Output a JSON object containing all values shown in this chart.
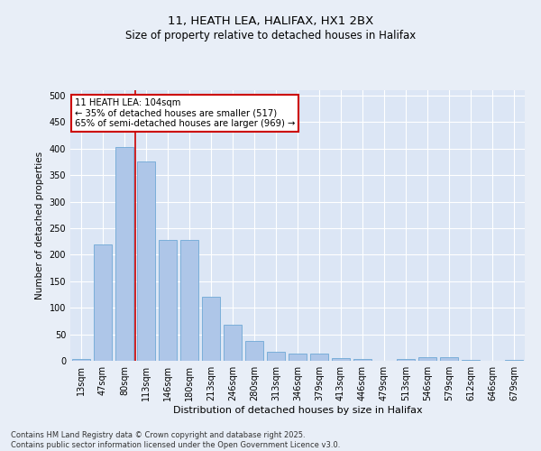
{
  "title1": "11, HEATH LEA, HALIFAX, HX1 2BX",
  "title2": "Size of property relative to detached houses in Halifax",
  "xlabel": "Distribution of detached houses by size in Halifax",
  "ylabel": "Number of detached properties",
  "categories": [
    "13sqm",
    "47sqm",
    "80sqm",
    "113sqm",
    "146sqm",
    "180sqm",
    "213sqm",
    "246sqm",
    "280sqm",
    "313sqm",
    "346sqm",
    "379sqm",
    "413sqm",
    "446sqm",
    "479sqm",
    "513sqm",
    "546sqm",
    "579sqm",
    "612sqm",
    "646sqm",
    "679sqm"
  ],
  "values": [
    3,
    220,
    403,
    375,
    228,
    228,
    120,
    68,
    38,
    17,
    13,
    13,
    5,
    3,
    0,
    3,
    7,
    7,
    1,
    0,
    1
  ],
  "bar_color": "#aec6e8",
  "bar_edge_color": "#6fa8d6",
  "vline_color": "#cc0000",
  "annotation_text": "11 HEATH LEA: 104sqm\n← 35% of detached houses are smaller (517)\n65% of semi-detached houses are larger (969) →",
  "annotation_box_color": "#ffffff",
  "annotation_box_edge": "#cc0000",
  "bg_color": "#e8eef7",
  "plot_bg_color": "#dce6f5",
  "grid_color": "#ffffff",
  "footer": "Contains HM Land Registry data © Crown copyright and database right 2025.\nContains public sector information licensed under the Open Government Licence v3.0.",
  "ylim": [
    0,
    510
  ],
  "yticks": [
    0,
    50,
    100,
    150,
    200,
    250,
    300,
    350,
    400,
    450,
    500
  ]
}
